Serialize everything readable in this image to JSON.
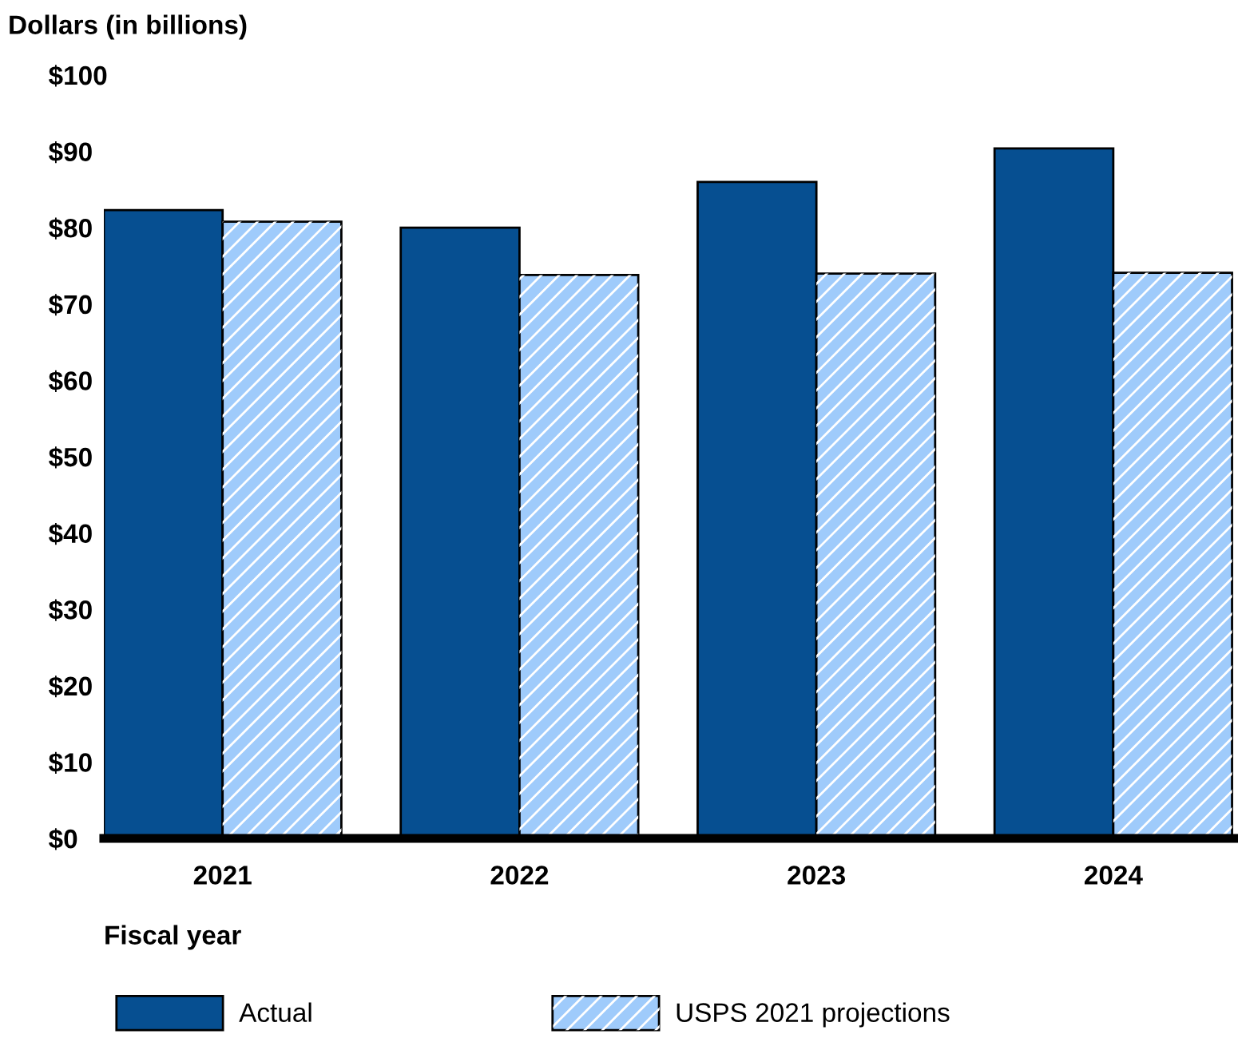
{
  "chart_data": {
    "type": "bar",
    "ylabel": "Dollars (in billions)",
    "xlabel": "Fiscal year",
    "categories": [
      "2021",
      "2022",
      "2023",
      "2024"
    ],
    "series": [
      {
        "name": "Actual",
        "color": "#064f91",
        "values": [
          82.3,
          80.0,
          86.0,
          90.4
        ]
      },
      {
        "name": "USPS 2021 projections",
        "color": "#9fcbfb",
        "values": [
          80.8,
          73.8,
          74.0,
          74.1
        ]
      }
    ],
    "ylim": [
      0,
      100
    ],
    "yticks": [
      {
        "value": 0,
        "label": "$0"
      },
      {
        "value": 10,
        "label": "$10"
      },
      {
        "value": 20,
        "label": "$20"
      },
      {
        "value": 30,
        "label": "$30"
      },
      {
        "value": 40,
        "label": "$40"
      },
      {
        "value": 50,
        "label": "$50"
      },
      {
        "value": 60,
        "label": "$60"
      },
      {
        "value": 70,
        "label": "$70"
      },
      {
        "value": 80,
        "label": "$80"
      },
      {
        "value": 90,
        "label": "$90"
      },
      {
        "value": 100,
        "label": "$100"
      }
    ],
    "grid": false,
    "legend": "bottom"
  }
}
